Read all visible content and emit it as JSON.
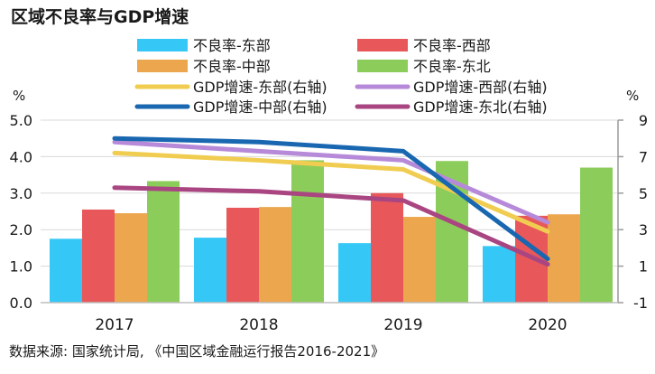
{
  "chart_data": {
    "type": "bar",
    "title": "区域不良率与GDP增速",
    "source": "数据来源: 国家统计局, 《中国区域金融运行报告2016-2021》",
    "categories": [
      "2017",
      "2018",
      "2019",
      "2020"
    ],
    "y_left": {
      "label": "%",
      "min": 0,
      "max": 5,
      "ticks": [
        "0.0",
        "1.0",
        "2.0",
        "3.0",
        "4.0",
        "5.0"
      ]
    },
    "y_right": {
      "label": "%",
      "min": -1,
      "max": 9,
      "ticks": [
        "-1",
        "1",
        "3",
        "5",
        "7",
        "9"
      ]
    },
    "grid": true,
    "legend_position": "top",
    "bar_series": [
      {
        "name": "不良率-东部",
        "color": "#35c8f6",
        "values": [
          1.75,
          1.78,
          1.63,
          1.55
        ]
      },
      {
        "name": "不良率-西部",
        "color": "#e8585a",
        "values": [
          2.55,
          2.6,
          3.0,
          2.38
        ]
      },
      {
        "name": "不良率-中部",
        "color": "#eba64e",
        "values": [
          2.45,
          2.62,
          2.35,
          2.42
        ]
      },
      {
        "name": "不良率-东北",
        "color": "#8ccc5a",
        "values": [
          3.33,
          3.9,
          3.88,
          3.7
        ]
      }
    ],
    "line_series": [
      {
        "name": "GDP增速-东部(右轴)",
        "color": "#f0cd50",
        "values": [
          7.2,
          6.8,
          6.3,
          2.9
        ]
      },
      {
        "name": "GDP增速-西部(右轴)",
        "color": "#b68ad8",
        "values": [
          7.8,
          7.3,
          6.8,
          3.4
        ]
      },
      {
        "name": "GDP增速-中部(右轴)",
        "color": "#1867b0",
        "values": [
          8.0,
          7.8,
          7.3,
          1.4
        ]
      },
      {
        "name": "GDP增速-东北(右轴)",
        "color": "#a94681",
        "values": [
          5.3,
          5.1,
          4.6,
          1.1
        ]
      }
    ]
  }
}
